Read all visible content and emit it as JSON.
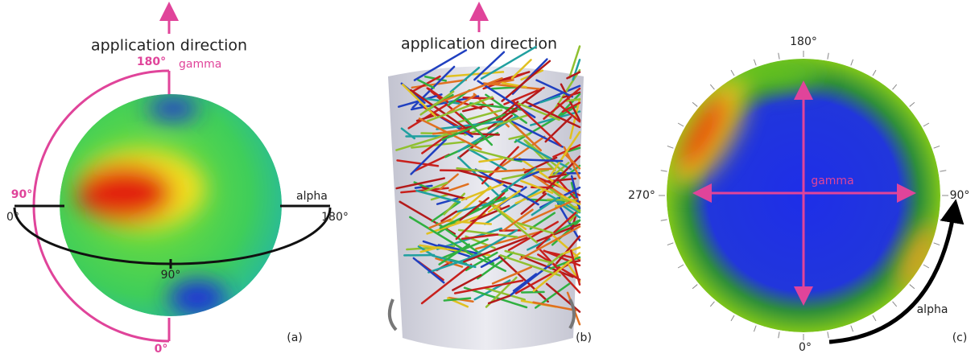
{
  "panel_a": {
    "heading": "application direction",
    "gamma_top": "180°",
    "gamma_label": "gamma",
    "gamma_mid": "90°",
    "gamma_bottom": "0°",
    "alpha_start": "0°",
    "alpha_label": "alpha",
    "alpha_end": "180°",
    "alpha_mid": "90°",
    "caption": "(a)"
  },
  "panel_b": {
    "heading": "application direction",
    "caption": "(b)"
  },
  "panel_c": {
    "top": "180°",
    "left": "270°",
    "right": "90°",
    "bottom": "0°",
    "gamma_label": "gamma",
    "alpha_label": "alpha",
    "caption": "(c)"
  }
}
